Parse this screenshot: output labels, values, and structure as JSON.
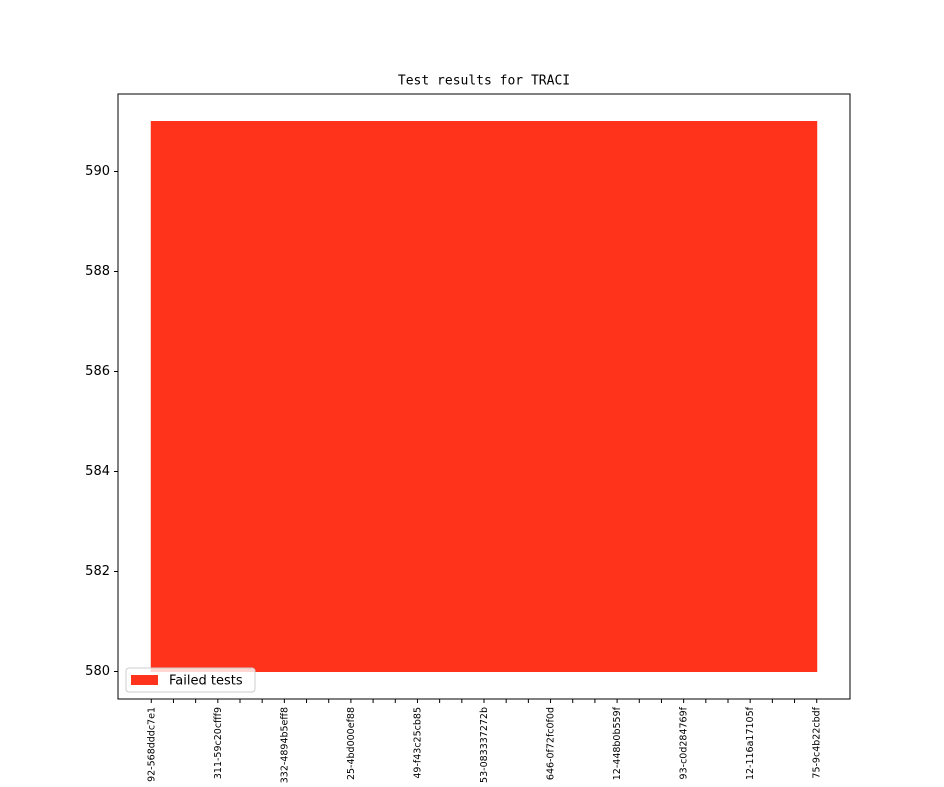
{
  "chart_data": {
    "type": "area",
    "title": "Test results for TRACI",
    "categories": [
      "92-568dddc7e1",
      null,
      null,
      "311-59c20cfff9",
      null,
      null,
      "332-4894b5eff8",
      null,
      null,
      "25-4bd000ef88",
      null,
      null,
      "49-f43c25cb85",
      null,
      null,
      "53-083337272b",
      null,
      null,
      "646-0f72fc0f0d",
      null,
      null,
      "12-448b0b559f",
      null,
      null,
      "93-c0d284769f",
      null,
      null,
      "12-116a17105f",
      null,
      null,
      "75-9c4b22cbdf"
    ],
    "series": [
      {
        "name": "Failed tests",
        "color": "#ff321b",
        "values": [
          591,
          591,
          591,
          591,
          591,
          591,
          591,
          591,
          591,
          591,
          591,
          591,
          591,
          591,
          591,
          591,
          591,
          591,
          591,
          591,
          591,
          591,
          591,
          591,
          591,
          591,
          591,
          591,
          591,
          591,
          591
        ]
      }
    ],
    "baseline": 580,
    "ylim": [
      579.45,
      591.55
    ],
    "yticks": [
      580,
      582,
      584,
      586,
      588,
      590
    ],
    "legend": "lower left",
    "grid": false
  }
}
